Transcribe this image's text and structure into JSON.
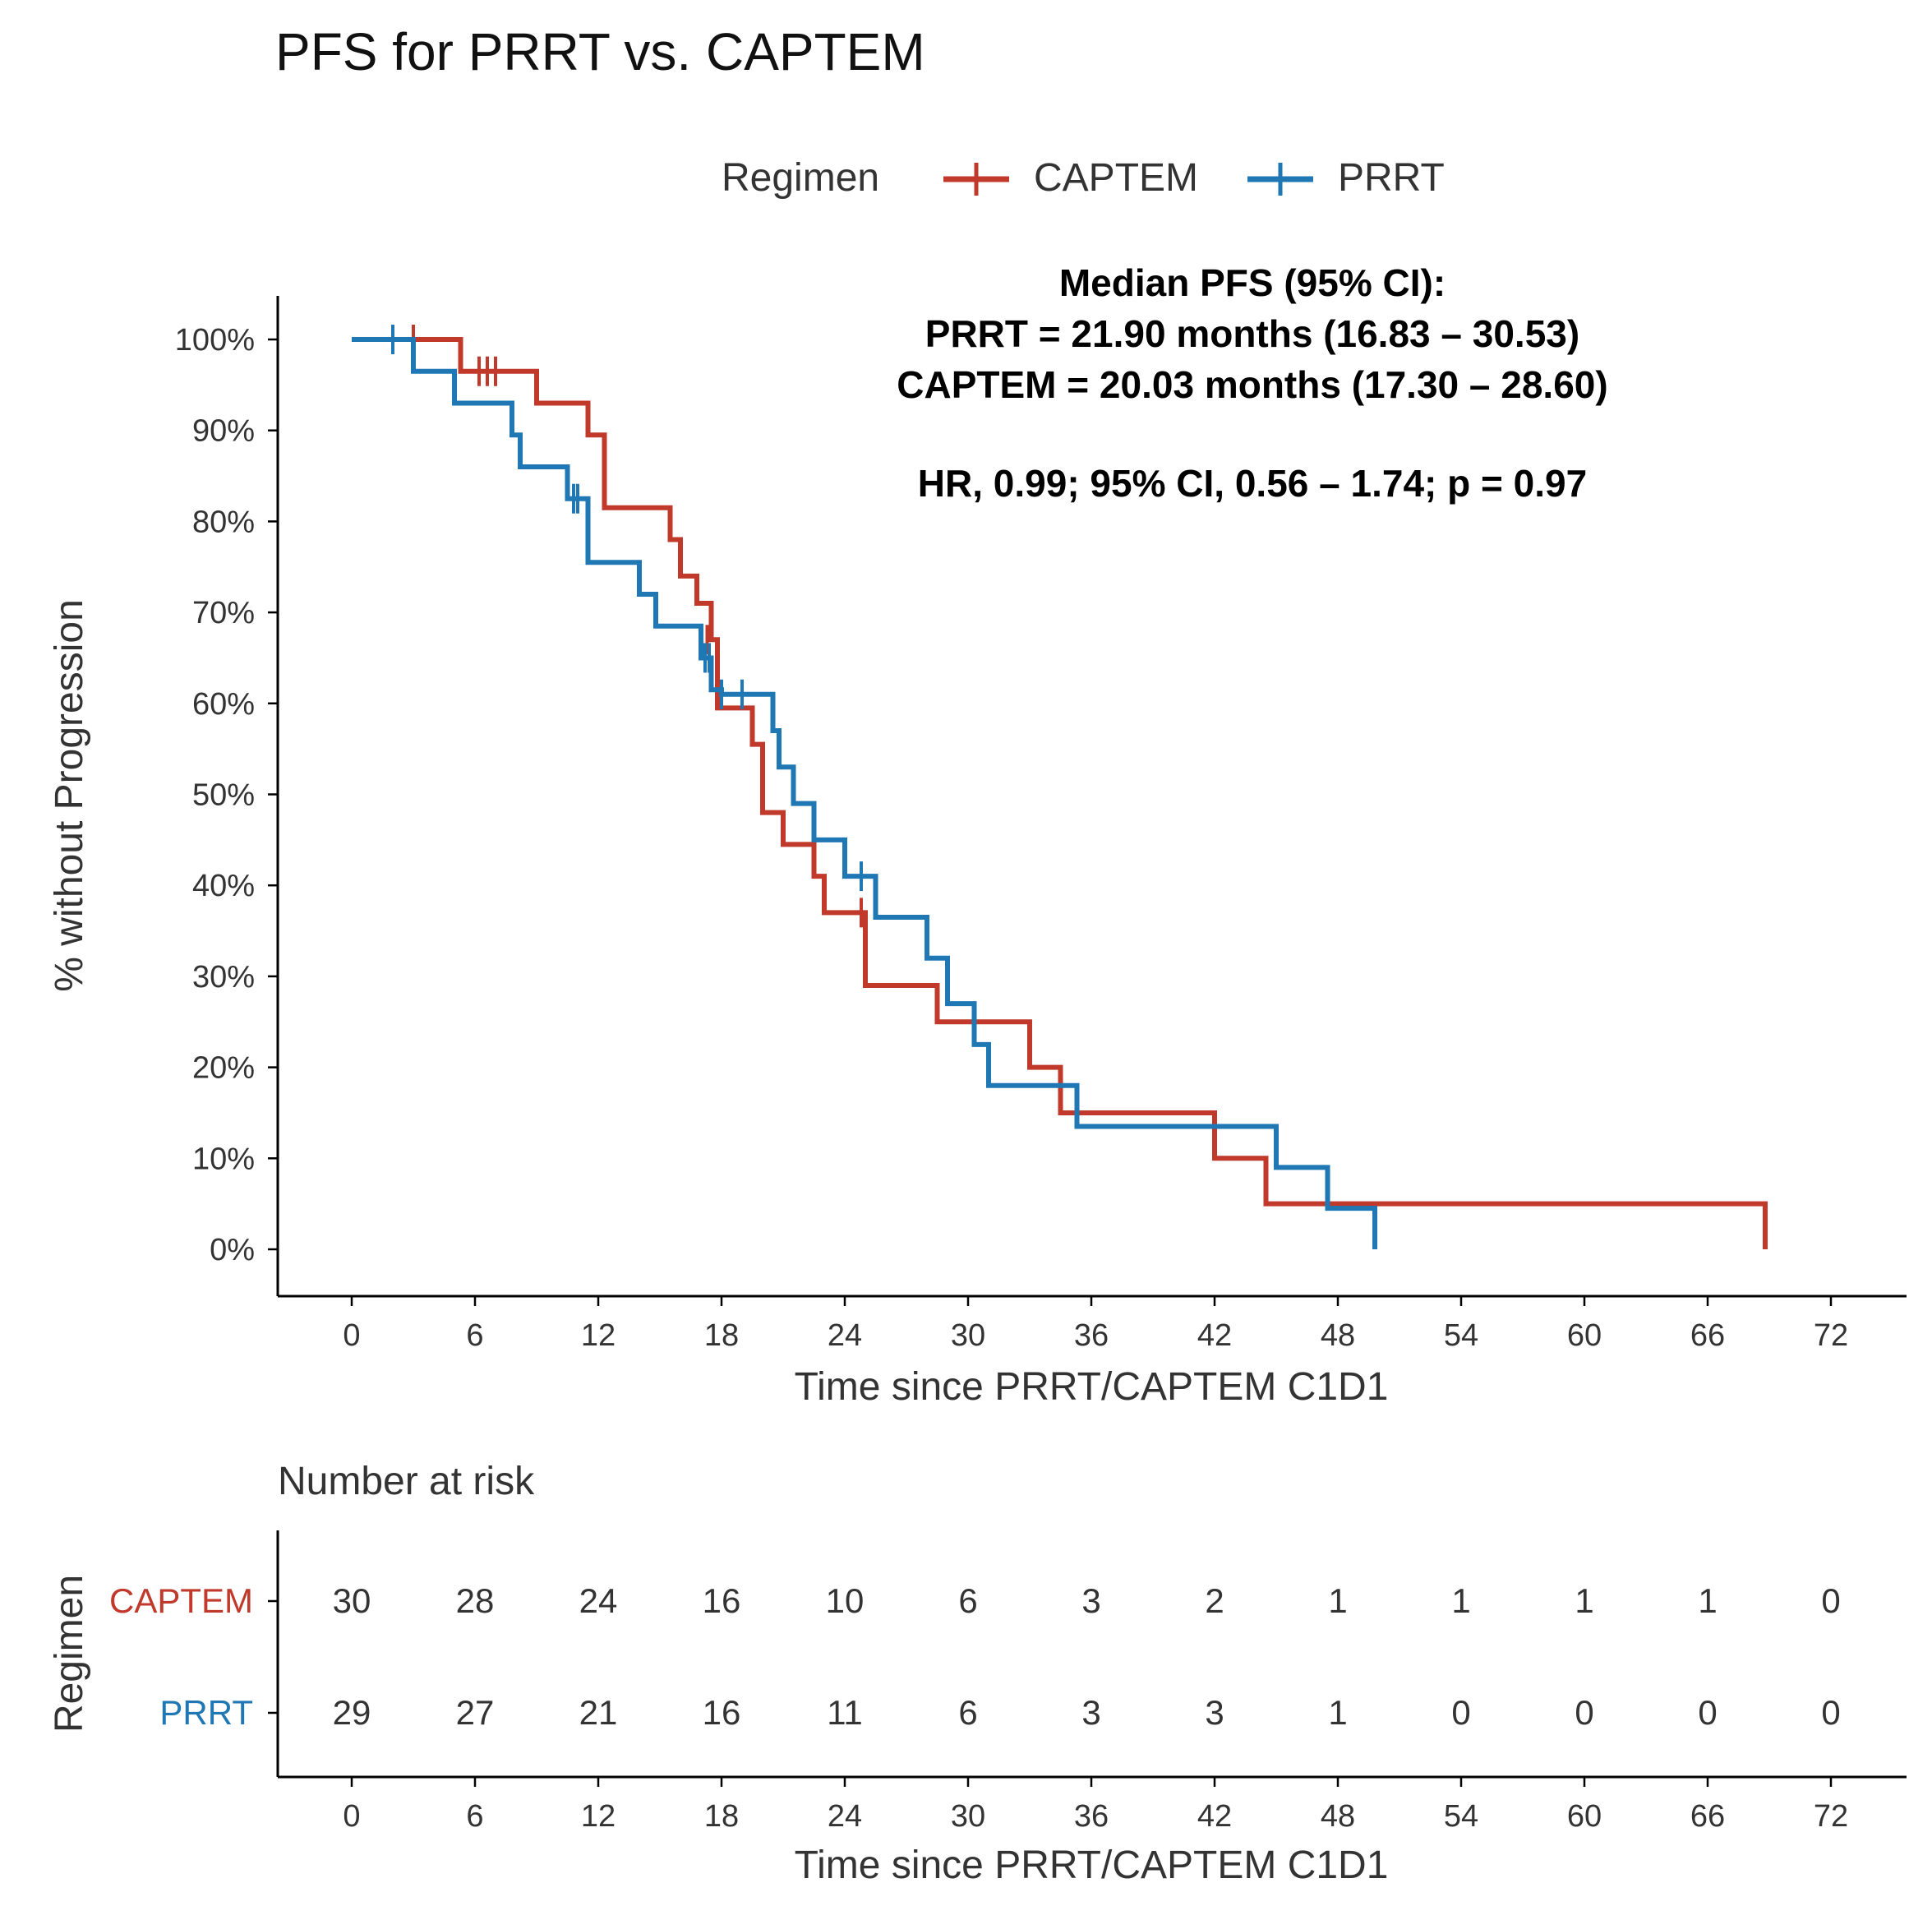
{
  "colors": {
    "captem": "#c0392b",
    "prrt": "#1f77b4"
  },
  "chart_data": [
    {
      "type": "line",
      "subtype": "kaplan-meier",
      "title": "PFS for PRRT vs. CAPTEM",
      "xlabel": "Time since PRRT/CAPTEM C1D1",
      "ylabel": "% without Progression",
      "xlim": [
        -3,
        75
      ],
      "ylim": [
        0,
        100
      ],
      "xticks": [
        "0",
        "6",
        "12",
        "18",
        "24",
        "30",
        "36",
        "42",
        "48",
        "54",
        "60",
        "66",
        "72"
      ],
      "yticks": [
        "0%",
        "10%",
        "20%",
        "30%",
        "40%",
        "50%",
        "60%",
        "70%",
        "80%",
        "90%",
        "100%"
      ],
      "legend": {
        "title": "Regimen",
        "position": "top",
        "entries": [
          "CAPTEM",
          "PRRT"
        ]
      },
      "annotations": [
        "Median PFS (95% CI):",
        "PRRT = 21.90 months (16.83 – 30.53)",
        "CAPTEM = 20.03 months (17.30 – 28.60)",
        "HR, 0.99; 95% CI, 0.56 – 1.74; p = 0.97"
      ],
      "series": [
        {
          "name": "CAPTEM",
          "color": "#c0392b",
          "x": [
            0,
            5.3,
            9.0,
            11.5,
            12.3,
            15.5,
            16.0,
            16.8,
            17.5,
            17.8,
            19.5,
            20.0,
            21.0,
            22.5,
            23.0,
            25.0,
            28.5,
            33.0,
            34.5,
            42.0,
            44.5,
            68.8
          ],
          "y": [
            100,
            96.5,
            93,
            89.5,
            81.5,
            78,
            74,
            71,
            67,
            59.5,
            55.5,
            48,
            44.5,
            41,
            37,
            29,
            25,
            20,
            15,
            10,
            5,
            0
          ],
          "censor_x": [
            3.0,
            6.2,
            6.6,
            7.0,
            17.3,
            24.8
          ],
          "censor_y": [
            100,
            96.5,
            96.5,
            96.5,
            67,
            37
          ]
        },
        {
          "name": "PRRT",
          "color": "#1f77b4",
          "x": [
            0,
            3.0,
            5.0,
            7.8,
            8.2,
            10.5,
            11.5,
            14.0,
            14.8,
            17.0,
            17.5,
            18.0,
            20.5,
            20.8,
            21.5,
            22.5,
            24.0,
            25.5,
            28.0,
            29.0,
            30.3,
            31.0,
            35.3,
            45.0,
            47.5,
            49.8
          ],
          "y": [
            100,
            96.5,
            93,
            89.5,
            86,
            82.5,
            75.5,
            72,
            68.5,
            65,
            61.5,
            61,
            57,
            53,
            49,
            45,
            41,
            36.5,
            32,
            27,
            22.5,
            18,
            13.5,
            9,
            4.5,
            0
          ],
          "censor_x": [
            2.0,
            10.8,
            11.0,
            17.2,
            17.4,
            18.0,
            19.0,
            24.8
          ],
          "censor_y": [
            100,
            82.5,
            82.5,
            65,
            65,
            61,
            61,
            41
          ]
        }
      ]
    },
    {
      "type": "table",
      "title": "Number at risk",
      "row_axis_label": "Regimen",
      "xlabel": "Time since PRRT/CAPTEM C1D1",
      "columns": [
        "0",
        "6",
        "12",
        "18",
        "24",
        "30",
        "36",
        "42",
        "48",
        "54",
        "60",
        "66",
        "72"
      ],
      "rows": [
        {
          "label": "CAPTEM",
          "color": "#c0392b",
          "values": [
            "30",
            "28",
            "24",
            "16",
            "10",
            "6",
            "3",
            "2",
            "1",
            "1",
            "1",
            "1",
            "0"
          ]
        },
        {
          "label": "PRRT",
          "color": "#1f77b4",
          "values": [
            "29",
            "27",
            "21",
            "16",
            "11",
            "6",
            "3",
            "3",
            "1",
            "0",
            "0",
            "0",
            "0"
          ]
        }
      ]
    }
  ]
}
